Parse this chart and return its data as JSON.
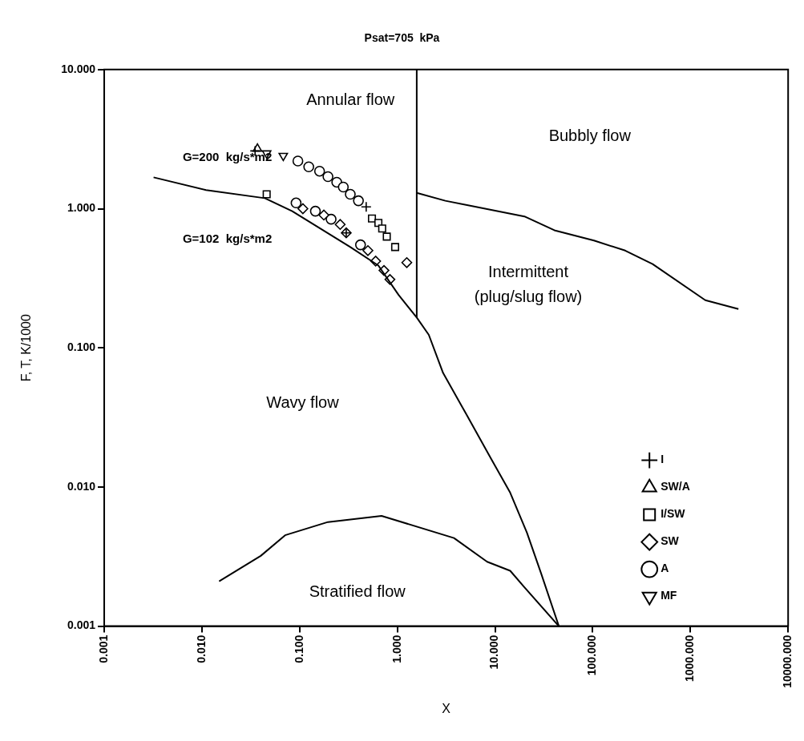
{
  "chart_data": {
    "type": "scatter",
    "title": "Psat=705  kPa",
    "xlabel": "X",
    "ylabel": "F, T, K/1000",
    "log": "xy",
    "grid": false,
    "legend": "bottom right",
    "xlim": [
      0.001,
      10000
    ],
    "ylim": [
      0.001,
      10
    ],
    "xticks": [
      {
        "value": 0.001,
        "label": "0.001"
      },
      {
        "value": 0.01,
        "label": "0.010"
      },
      {
        "value": 0.1,
        "label": "0.100"
      },
      {
        "value": 1,
        "label": "1.000"
      },
      {
        "value": 10,
        "label": "10.000"
      },
      {
        "value": 100,
        "label": "100.000"
      },
      {
        "value": 1000,
        "label": "1000.000"
      },
      {
        "value": 10000,
        "label": "10000.000"
      }
    ],
    "yticks": [
      {
        "value": 0.001,
        "label": "0.001"
      },
      {
        "value": 0.01,
        "label": "0.010"
      },
      {
        "value": 0.1,
        "label": "0.100"
      },
      {
        "value": 1,
        "label": "1.000"
      },
      {
        "value": 10,
        "label": "10.000"
      }
    ],
    "series": [
      {
        "type": "line",
        "color": "#000000",
        "marker": "none",
        "x": [
          0.0032,
          0.011,
          0.044,
          0.084,
          0.33,
          0.64,
          1.03,
          1.58,
          2.1,
          2.94,
          5.0,
          9.1,
          14.3,
          21.2,
          29.6,
          45
        ],
        "values": [
          1.68,
          1.36,
          1.19,
          0.96,
          0.53,
          0.39,
          0.24,
          0.165,
          0.124,
          0.066,
          0.034,
          0.016,
          0.0091,
          0.0047,
          0.0024,
          0.001
        ]
      },
      {
        "type": "line",
        "color": "#000000",
        "marker": "none",
        "x": [
          1.58,
          1.58
        ],
        "values": [
          0.165,
          10
        ]
      },
      {
        "type": "line",
        "color": "#000000",
        "marker": "none",
        "x": [
          1.58,
          3.1,
          20,
          40.5,
          103,
          215,
          410,
          1420,
          3100
        ],
        "values": [
          1.3,
          1.14,
          0.88,
          0.7,
          0.59,
          0.5,
          0.4,
          0.22,
          0.19
        ]
      },
      {
        "type": "line",
        "color": "#000000",
        "marker": "none",
        "x": [
          0.015,
          0.04,
          0.071,
          0.195,
          0.69,
          3.8,
          8.3,
          14.3,
          20,
          45
        ],
        "values": [
          0.0021,
          0.0032,
          0.0045,
          0.0056,
          0.0062,
          0.0043,
          0.0029,
          0.0025,
          0.0019,
          0.001
        ]
      },
      {
        "type": "scatter",
        "name": "I",
        "color": "#000000",
        "marker": "cross",
        "x": [
          0.035,
          0.48,
          0.3
        ],
        "values": [
          2.6,
          1.03,
          0.67
        ]
      },
      {
        "type": "scatter",
        "name": "SW/A",
        "color": "#000000",
        "marker": "triangle",
        "x": [
          0.037
        ],
        "values": [
          2.7
        ]
      },
      {
        "type": "scatter",
        "name": "I/SW",
        "color": "#000000",
        "marker": "square",
        "x": [
          0.046,
          0.55,
          0.64,
          0.7,
          0.78,
          0.95
        ],
        "values": [
          1.27,
          0.85,
          0.79,
          0.72,
          0.63,
          0.53
        ]
      },
      {
        "type": "scatter",
        "name": "SW",
        "color": "#000000",
        "marker": "diamond",
        "x": [
          1.25,
          0.108,
          0.177,
          0.26,
          0.3,
          0.5,
          0.6,
          0.73,
          0.84
        ],
        "values": [
          0.41,
          1.0,
          0.9,
          0.77,
          0.67,
          0.5,
          0.42,
          0.36,
          0.31
        ]
      },
      {
        "type": "scatter",
        "name": "A",
        "color": "#000000",
        "marker": "circle",
        "x": [
          0.096,
          0.124,
          0.16,
          0.195,
          0.24,
          0.28,
          0.33,
          0.4,
          0.092,
          0.145,
          0.21,
          0.42
        ],
        "values": [
          2.2,
          2.0,
          1.86,
          1.7,
          1.55,
          1.43,
          1.27,
          1.14,
          1.1,
          0.96,
          0.84,
          0.55
        ]
      },
      {
        "type": "scatter",
        "name": "MF",
        "color": "#000000",
        "marker": "triangle_down",
        "x": [
          0.046,
          0.068
        ],
        "values": [
          2.5,
          2.4
        ]
      }
    ],
    "annotations": [
      "Annular flow",
      "Bubbly flow",
      "Intermittent",
      "(plug/slug flow)",
      "Wavy flow",
      "Stratified flow",
      "G=200  kg/s*m2",
      "G=102  kg/s*m2"
    ]
  }
}
